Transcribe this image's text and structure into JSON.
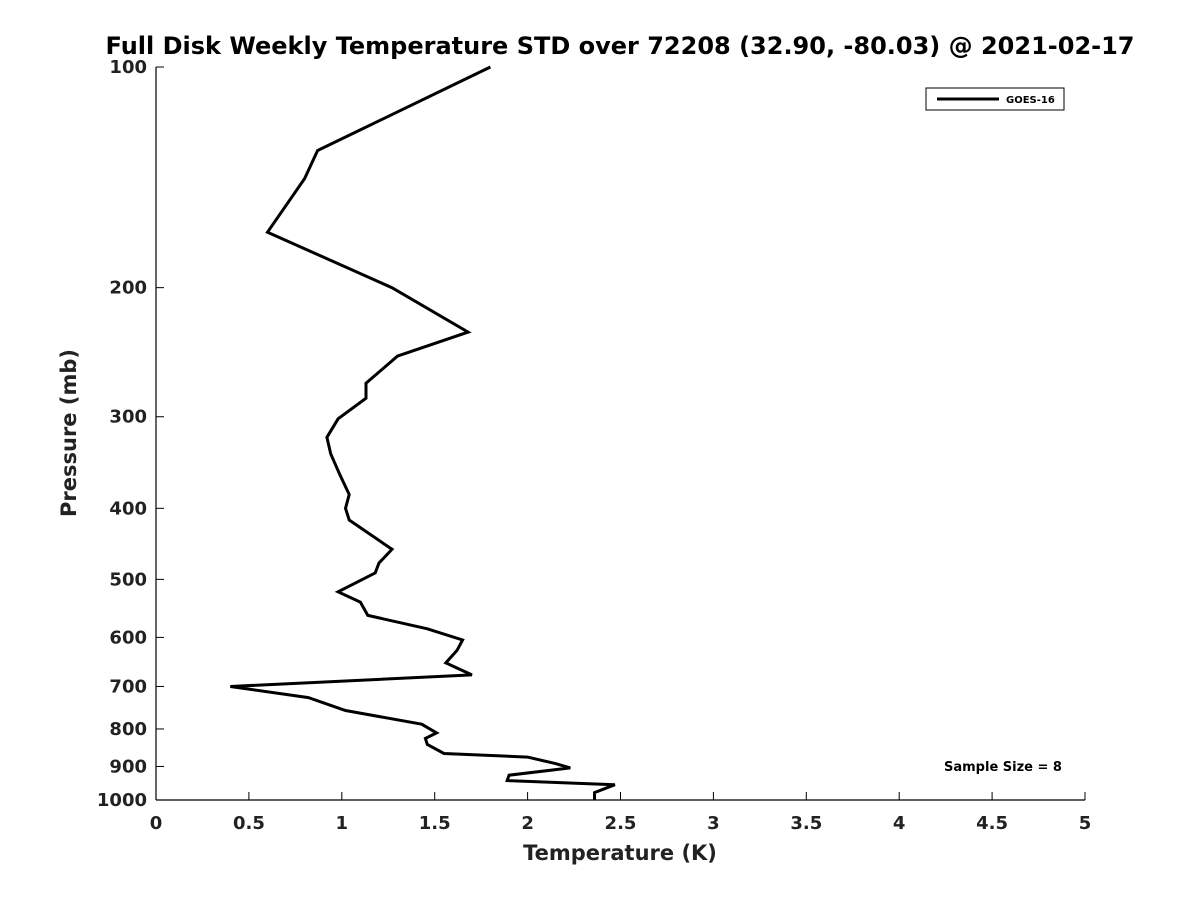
{
  "chart_data": {
    "type": "line",
    "title": "Full Disk Weekly Temperature STD over 72208 (32.90, -80.03) @ 2021-02-17",
    "xlabel": "Temperature (K)",
    "ylabel": "Pressure (mb)",
    "xlim": [
      0,
      5
    ],
    "ylim": [
      1000,
      100
    ],
    "y_scale": "log",
    "y_reversed": true,
    "xticks": [
      "0",
      "0.5",
      "1",
      "1.5",
      "2",
      "2.5",
      "3",
      "3.5",
      "4",
      "4.5",
      "5"
    ],
    "yticks": [
      "100",
      "200",
      "300",
      "400",
      "500",
      "600",
      "700",
      "800",
      "900",
      "1000"
    ],
    "grid": false,
    "legend": {
      "placement": "top-right",
      "entries": [
        "GOES-16"
      ]
    },
    "annotation": "Sample Size = 8",
    "series": [
      {
        "name": "GOES-16",
        "color": "#000000",
        "x": [
          1.8,
          0.87,
          0.8,
          0.6,
          1.27,
          1.68,
          1.3,
          1.13,
          1.13,
          0.98,
          0.92,
          0.94,
          0.99,
          1.04,
          1.02,
          1.04,
          1.27,
          1.2,
          1.18,
          0.98,
          1.1,
          1.14,
          1.46,
          1.65,
          1.62,
          1.56,
          1.7,
          0.4,
          0.82,
          1.02,
          1.43,
          1.51,
          1.45,
          1.46,
          1.55,
          2.0,
          2.15,
          2.23,
          1.9,
          1.89,
          2.47,
          2.36,
          2.36
        ],
        "y": [
          100,
          130,
          142,
          168,
          200,
          230,
          248,
          270,
          283,
          302,
          320,
          337,
          360,
          383,
          400,
          415,
          455,
          475,
          490,
          520,
          537,
          560,
          584,
          605,
          625,
          650,
          675,
          700,
          725,
          755,
          788,
          810,
          824,
          840,
          864,
          874,
          892,
          904,
          925,
          941,
          953,
          977,
          1000
        ]
      }
    ]
  }
}
